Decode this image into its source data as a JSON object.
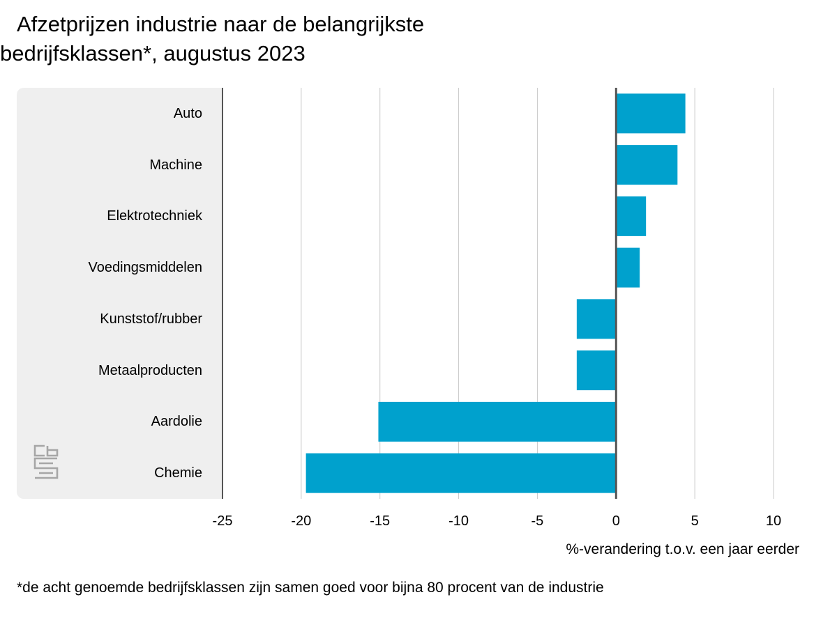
{
  "chart_data": {
    "type": "bar",
    "orientation": "horizontal",
    "title": "Afzetprijzen industrie naar de belangrijkste bedrijfsklassen*, augustus 2023",
    "title_lines": [
      "Afzetprijzen industrie naar de belangrijkste",
      "bedrijfsklassen*, augustus 2023"
    ],
    "categories": [
      "Auto",
      "Machine",
      "Elektrotechniek",
      "Voedingsmiddelen",
      "Kunststof/rubber",
      "Metaalproducten",
      "Aardolie",
      "Chemie"
    ],
    "values": [
      4.4,
      3.9,
      1.9,
      1.5,
      -2.5,
      -2.5,
      -15.1,
      -19.7
    ],
    "xlabel": "%-verandering t.o.v. een jaar eerder",
    "ylabel": "",
    "xlim": [
      -25,
      10
    ],
    "xticks": [
      -25,
      -20,
      -15,
      -10,
      -5,
      0,
      5,
      10
    ],
    "xtick_labels": [
      "-25",
      "-20",
      "-15",
      "-10",
      "-5",
      "0",
      "5",
      "10"
    ],
    "grid": "vertical",
    "bar_color": "#00a1cd",
    "footnote": "*de acht genoemde bedrijfsklassen zijn samen goed voor bijna 80 procent van de industrie"
  },
  "colors": {
    "bar": "#00a1cd",
    "panel": "#efefef",
    "grid": "#c8c8c8",
    "axis": "#555555",
    "logo": "#a6a6a6"
  },
  "logo": {
    "icon": "cbs-logo-icon"
  }
}
